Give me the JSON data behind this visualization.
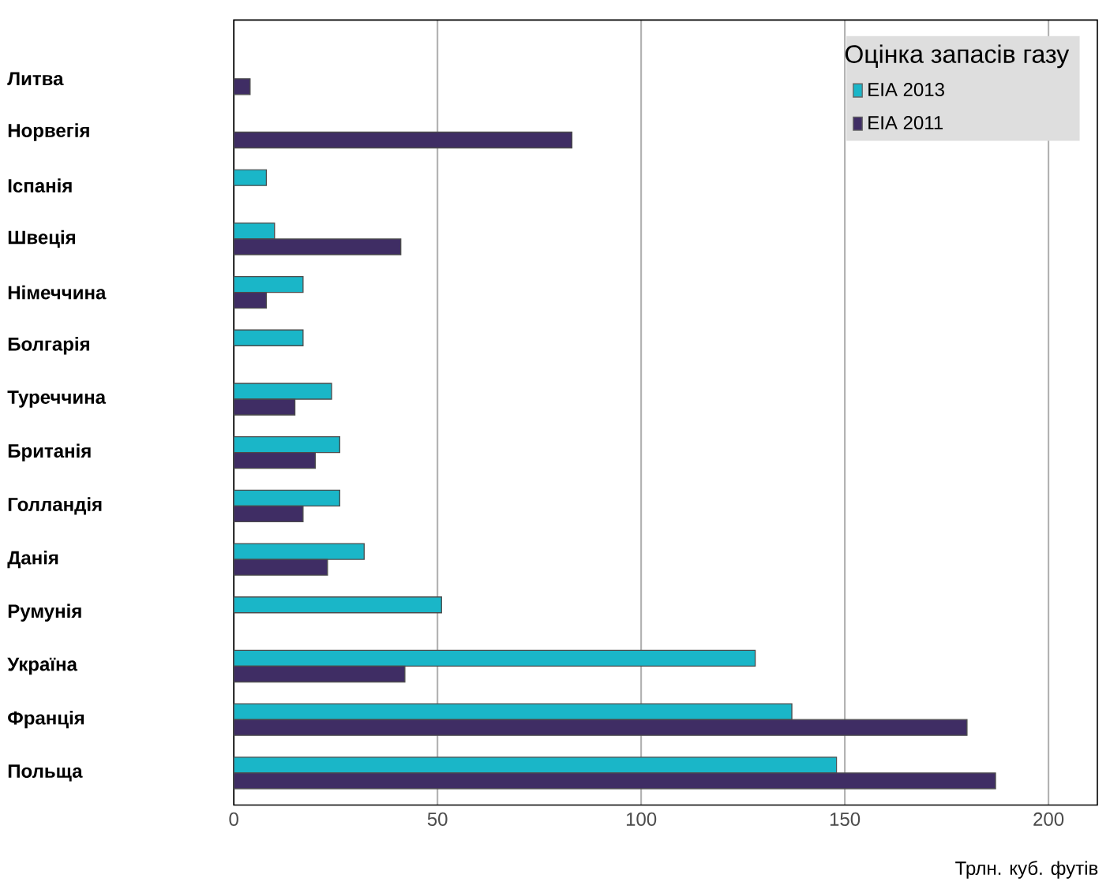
{
  "chart_data": {
    "type": "bar",
    "orientation": "horizontal",
    "xlabel": "Трлн. куб. футів",
    "legend_title": "Оцінка запасів газу",
    "categories": [
      "Литва",
      "Норвегія",
      "Іспанія",
      "Швеція",
      "Німеччина",
      "Болгарія",
      "Туреччина",
      "Британія",
      "Голландія",
      "Данія",
      "Румунія",
      "Україна",
      "Франція",
      "Польща"
    ],
    "series": [
      {
        "name": "EIA 2013",
        "color": "#1ab6c8",
        "values": [
          null,
          null,
          8,
          10,
          17,
          17,
          24,
          26,
          26,
          32,
          51,
          128,
          137,
          148
        ]
      },
      {
        "name": "EIA 2011",
        "color": "#3f2d64",
        "values": [
          4,
          83,
          null,
          41,
          8,
          null,
          15,
          20,
          17,
          23,
          null,
          42,
          180,
          187
        ]
      }
    ],
    "xlim": [
      0,
      212
    ],
    "xticks": [
      0,
      50,
      100,
      150,
      200
    ],
    "grid": "x",
    "legend": "top right"
  }
}
